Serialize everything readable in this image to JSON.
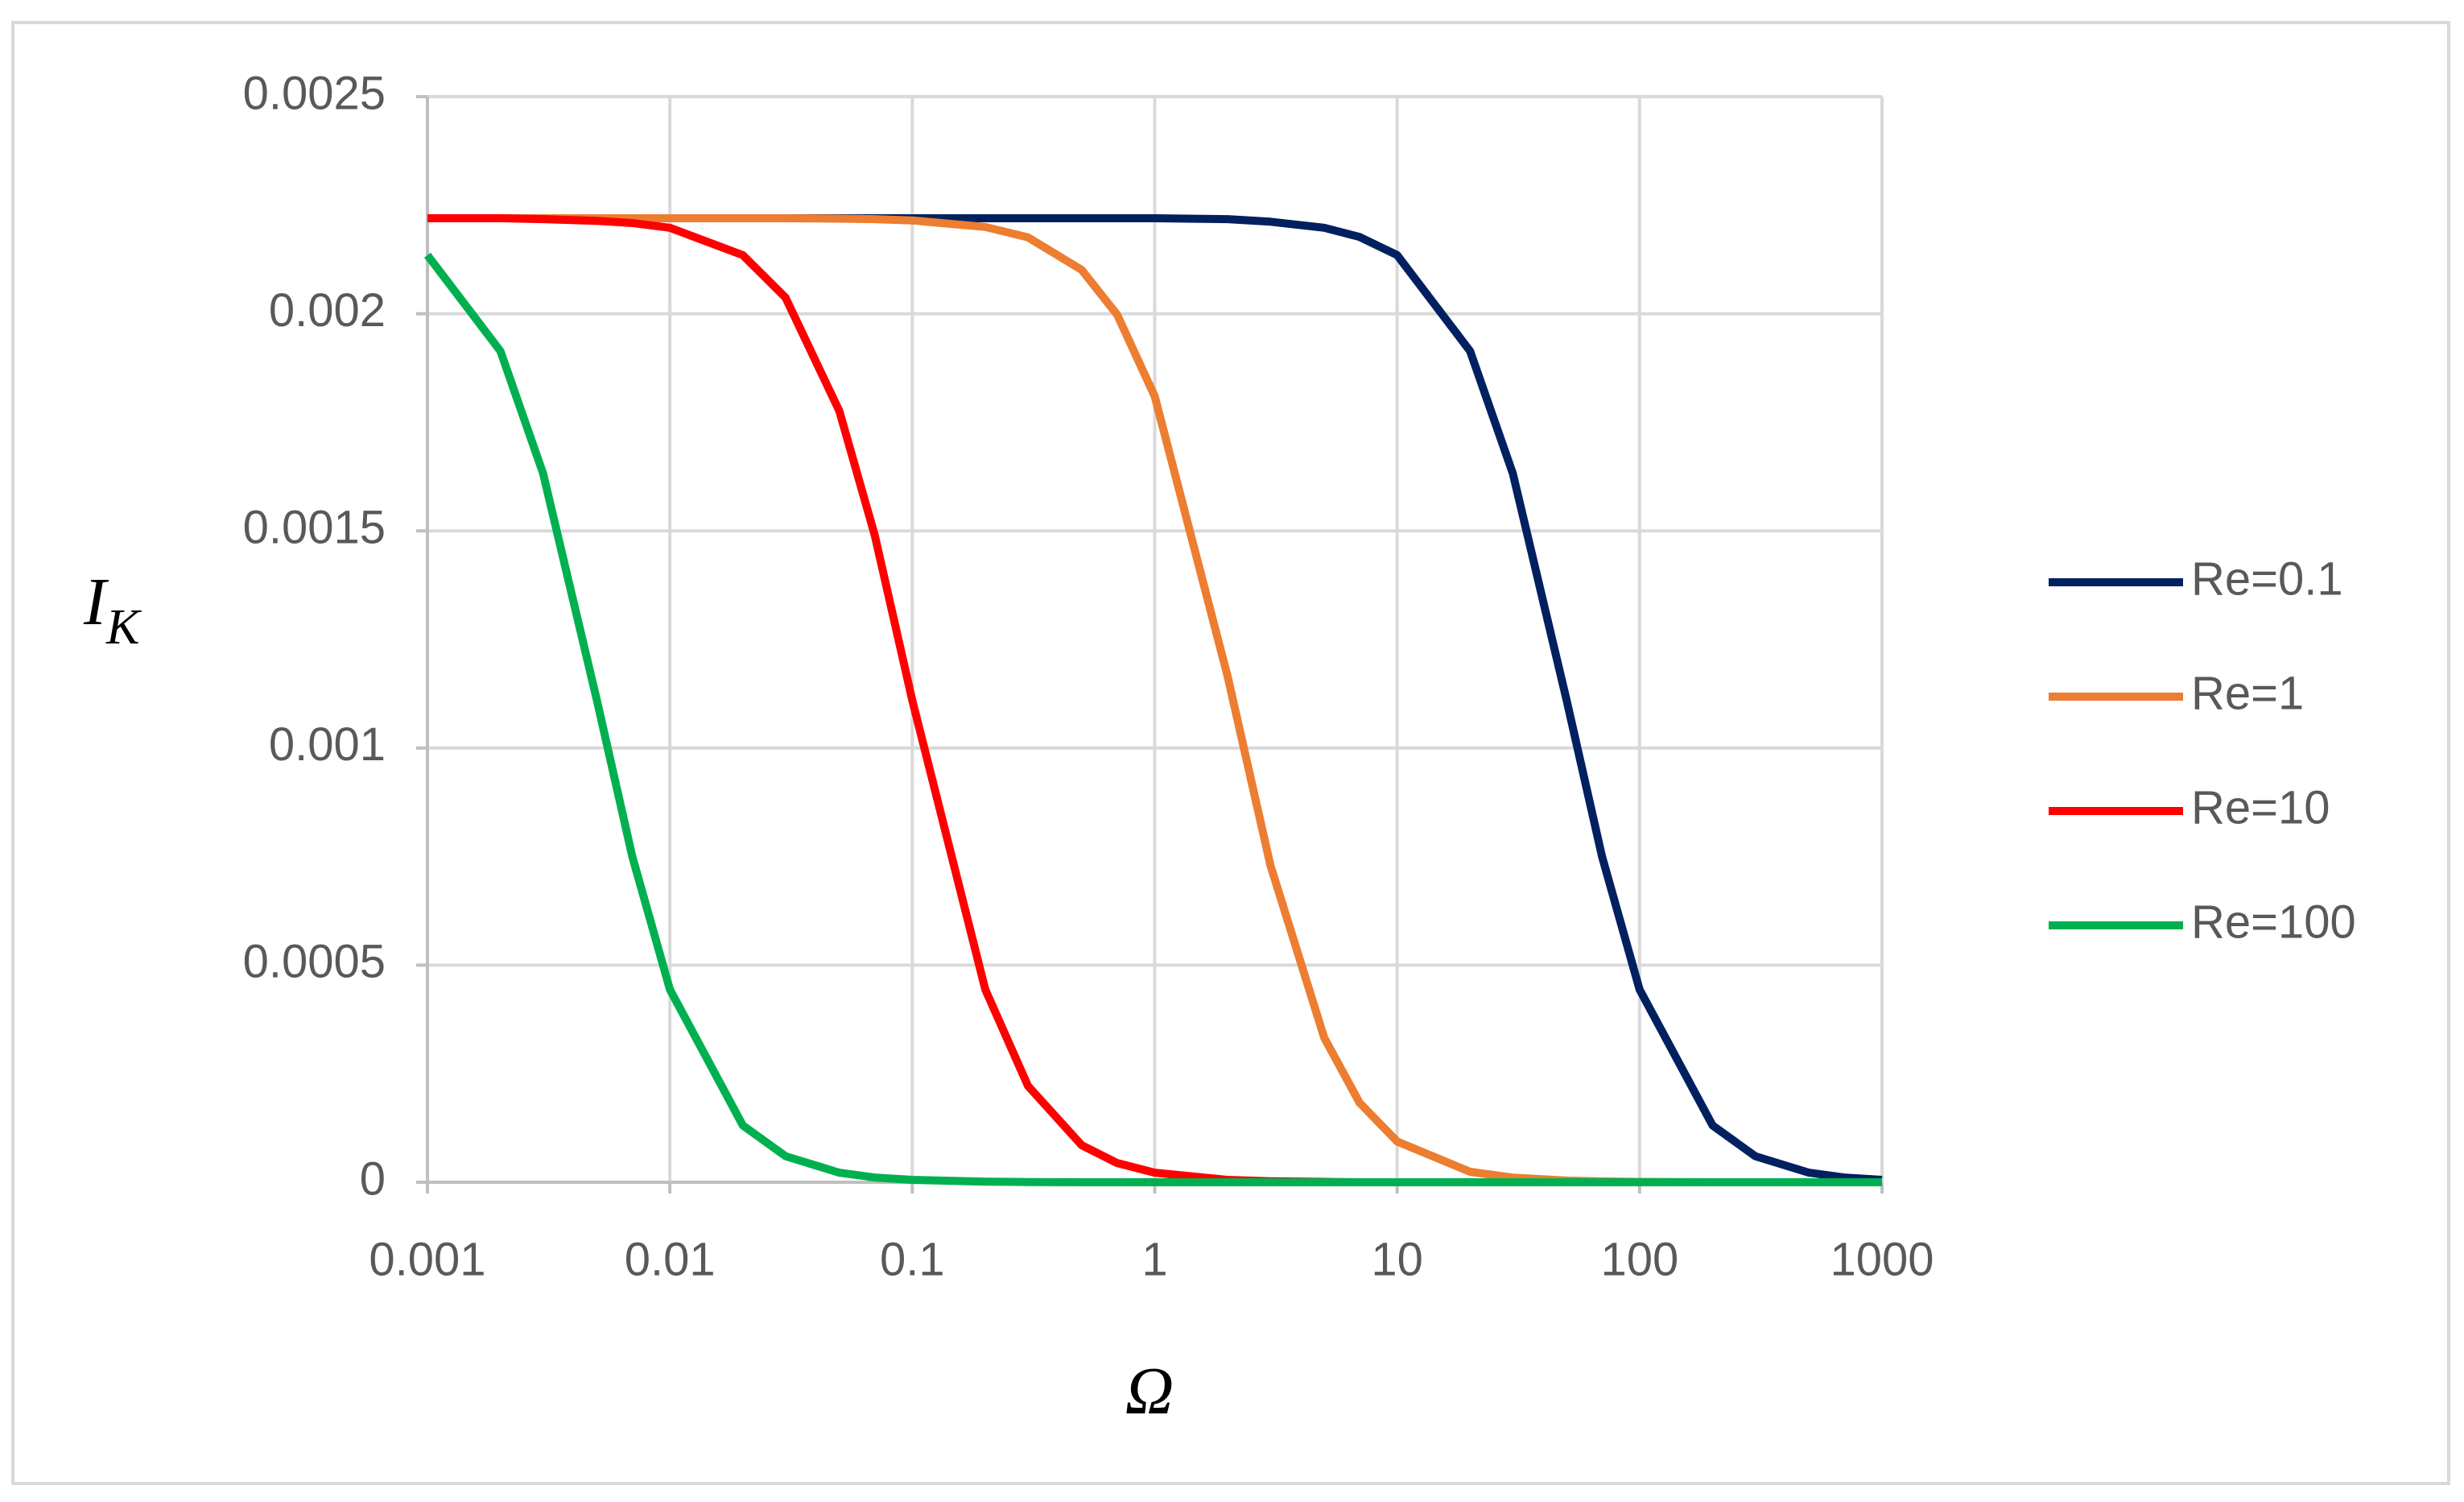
{
  "chart_data": {
    "type": "line",
    "xlabel": "Ω",
    "ylabel": "I",
    "ylabel_sub": "K",
    "xscale": "log",
    "grid": true,
    "legend": "right",
    "x": [
      0.001,
      0.002,
      0.003,
      0.005,
      0.007,
      0.01,
      0.02,
      0.03,
      0.05,
      0.07,
      0.1,
      0.2,
      0.3,
      0.5,
      0.7,
      1,
      2,
      3,
      5,
      7,
      10,
      20,
      30,
      50,
      70,
      100,
      200,
      300,
      500,
      700,
      1000
    ],
    "series": [
      {
        "name": "Re=0.1",
        "color": "#002060",
        "values": [
          0.00222,
          0.00222,
          0.00222,
          0.00222,
          0.00222,
          0.00222,
          0.00222,
          0.00222,
          0.00222,
          0.00222,
          0.00222,
          0.00222,
          0.00222,
          0.00222,
          0.00222,
          0.00222,
          0.002218,
          0.002212,
          0.002198,
          0.002177,
          0.002135,
          0.001914,
          0.001632,
          0.00111,
          0.00075,
          0.000444,
          0.000131,
          6e-05,
          2.2e-05,
          1.1e-05,
          5.5e-06
        ]
      },
      {
        "name": "Re=1",
        "color": "#ED7D31",
        "values": [
          0.00222,
          0.00222,
          0.00222,
          0.00222,
          0.00222,
          0.00222,
          0.00222,
          0.00222,
          0.002219,
          0.002218,
          0.002215,
          0.0022,
          0.002176,
          0.002101,
          0.001998,
          0.00181,
          0.001164,
          0.00073,
          0.000333,
          0.000183,
          9.38e-05,
          2.42e-05,
          1.08e-05,
          3.9e-06,
          2e-06,
          1e-06,
          0,
          0,
          0,
          0,
          0
        ]
      },
      {
        "name": "Re=10",
        "color": "#FF0000",
        "values": [
          0.00222,
          0.00222,
          0.002218,
          0.002214,
          0.002209,
          0.002198,
          0.002135,
          0.002037,
          0.001776,
          0.00149,
          0.00111,
          0.000444,
          0.000222,
          8.54e-05,
          4.44e-05,
          2.2e-05,
          5.5e-06,
          2.5e-06,
          9e-07,
          0,
          0,
          0,
          0,
          0,
          0,
          0,
          0,
          0,
          0,
          0,
          0
        ]
      },
      {
        "name": "Re=100",
        "color": "#00B050",
        "values": [
          0.002135,
          0.001914,
          0.001632,
          0.00111,
          0.00075,
          0.000444,
          0.000131,
          6e-05,
          2.2e-05,
          1.1e-05,
          5.5e-06,
          1.4e-06,
          6e-07,
          0,
          0,
          0,
          0,
          0,
          0,
          0,
          0,
          0,
          0,
          0,
          0,
          0,
          0,
          0,
          0,
          0,
          0
        ]
      }
    ],
    "xlim": [
      0.001,
      1000
    ],
    "xticks": [
      0.001,
      0.01,
      0.1,
      1,
      10,
      100,
      1000
    ],
    "ylim": [
      0,
      0.0025
    ],
    "yticks": [
      0,
      0.0005,
      0.001,
      0.0015,
      0.002,
      0.0025
    ]
  }
}
